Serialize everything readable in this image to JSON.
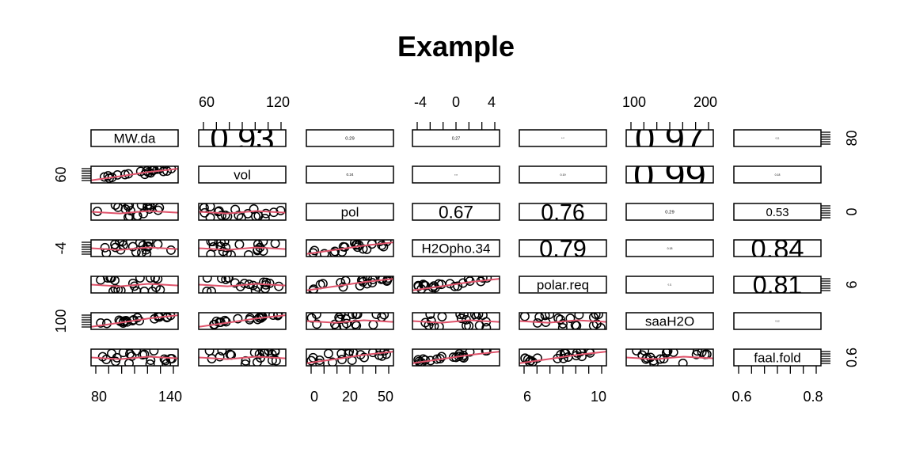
{
  "chart_data": {
    "type": "scatter",
    "subtype": "pairs-matrix",
    "title": "Example",
    "variables": [
      "MW.da",
      "vol",
      "pol",
      "H2Opho.34",
      "polar.req",
      "saaH2O",
      "faal.fold"
    ],
    "lower_panel": "scatter with smooth line",
    "upper_panel": "absolute correlation coefficient, text size scaled by value",
    "colors": {
      "points": "#000000",
      "smooth_line": "#DF536B",
      "frame": "#000000",
      "background": "#FFFFFF"
    },
    "axis_ticks": {
      "top": [
        {
          "variable": "vol",
          "labels": [
            "60",
            "120"
          ]
        },
        {
          "variable": "H2Opho.34",
          "labels": [
            "-4",
            "0",
            "4"
          ]
        },
        {
          "variable": "saaH2O",
          "labels": [
            "100",
            "200"
          ]
        }
      ],
      "bottom": [
        {
          "variable": "MW.da",
          "labels": [
            "80",
            "140"
          ]
        },
        {
          "variable": "pol",
          "labels": [
            "0",
            "20",
            "50"
          ]
        },
        {
          "variable": "polar.req",
          "labels": [
            "6",
            "10"
          ]
        },
        {
          "variable": "faal.fold",
          "labels": [
            "0.6",
            "0.8"
          ]
        }
      ],
      "left": [
        {
          "variable": "vol",
          "label": "60"
        },
        {
          "variable": "H2Opho.34",
          "label": "-4"
        },
        {
          "variable": "saaH2O",
          "label": "100"
        }
      ],
      "right": [
        {
          "variable": "MW.da",
          "label": "80"
        },
        {
          "variable": "pol",
          "label": "0"
        },
        {
          "variable": "polar.req",
          "label": "6"
        },
        {
          "variable": "faal.fold",
          "label": "0.6"
        }
      ]
    },
    "correlations": [
      {
        "row": "MW.da",
        "col": "vol",
        "value": 0.93
      },
      {
        "row": "MW.da",
        "col": "pol",
        "value": 0.29
      },
      {
        "row": "MW.da",
        "col": "H2Opho.34",
        "value": 0.27
      },
      {
        "row": "MW.da",
        "col": "polar.req",
        "value": 0.01
      },
      {
        "row": "MW.da",
        "col": "saaH2O",
        "value": 0.97
      },
      {
        "row": "MW.da",
        "col": "faal.fold",
        "value": 0.11
      },
      {
        "row": "vol",
        "col": "pol",
        "value": 0.24
      },
      {
        "row": "vol",
        "col": "H2Opho.34",
        "value": 0.05
      },
      {
        "row": "vol",
        "col": "polar.req",
        "value": 0.19
      },
      {
        "row": "vol",
        "col": "saaH2O",
        "value": 0.99
      },
      {
        "row": "vol",
        "col": "faal.fold",
        "value": 0.18
      },
      {
        "row": "pol",
        "col": "H2Opho.34",
        "value": 0.67
      },
      {
        "row": "pol",
        "col": "polar.req",
        "value": 0.76
      },
      {
        "row": "pol",
        "col": "saaH2O",
        "value": 0.29
      },
      {
        "row": "pol",
        "col": "faal.fold",
        "value": 0.53
      },
      {
        "row": "H2Opho.34",
        "col": "polar.req",
        "value": 0.79
      },
      {
        "row": "H2Opho.34",
        "col": "saaH2O",
        "value": 0.18
      },
      {
        "row": "H2Opho.34",
        "col": "faal.fold",
        "value": 0.84
      },
      {
        "row": "polar.req",
        "col": "saaH2O",
        "value": 0.11
      },
      {
        "row": "polar.req",
        "col": "faal.fold",
        "value": 0.81
      },
      {
        "row": "saaH2O",
        "col": "faal.fold",
        "value": 0.12
      }
    ]
  }
}
